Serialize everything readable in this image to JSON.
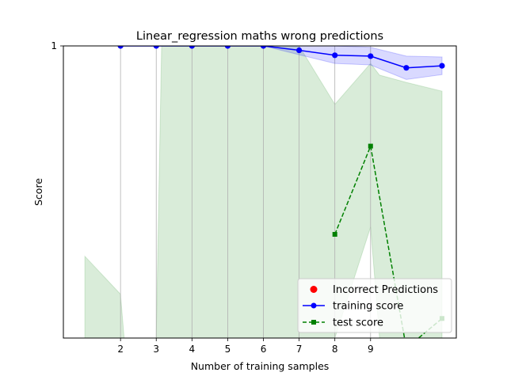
{
  "chart_data": {
    "type": "line",
    "title": "Linear_regression maths wrong predictions",
    "xlabel": "Number of training samples",
    "ylabel": "Score",
    "xlim": [
      0.4,
      11.4
    ],
    "ylim": [
      0.0,
      1.0
    ],
    "x_ticks": [
      2,
      3,
      4,
      5,
      6,
      7,
      8,
      9
    ],
    "y_ticks": [
      1
    ],
    "grid": "vertical lines at x ticks",
    "legend_position": "lower-right",
    "series": [
      {
        "name": "training score",
        "color": "#0000ff",
        "marker": "circle",
        "linestyle": "solid",
        "x": [
          2,
          3,
          4,
          5,
          6,
          7,
          8,
          9,
          10,
          11
        ],
        "values": [
          1.0,
          1.0,
          1.0,
          1.0,
          1.0,
          0.985,
          0.968,
          0.965,
          0.925,
          0.932
        ],
        "band_upper": [
          1.0,
          1.0,
          1.0,
          1.0,
          1.0,
          1.0,
          1.0,
          0.995,
          0.965,
          0.962
        ],
        "band_lower": [
          1.0,
          1.0,
          1.0,
          1.0,
          1.0,
          0.97,
          0.94,
          0.935,
          0.885,
          0.902
        ]
      },
      {
        "name": "test score",
        "color": "#008000",
        "marker": "square",
        "linestyle": "dashed",
        "x": [
          8,
          9,
          10,
          11
        ],
        "values": [
          0.355,
          0.657,
          -0.035,
          0.067
        ]
      }
    ],
    "test_band": {
      "color": "#008000",
      "x": [
        1,
        2,
        2.1,
        3,
        3.15,
        4,
        5,
        6,
        7,
        8,
        9,
        9.25,
        10,
        11
      ],
      "upper": [
        0.28,
        0.15,
        0.0,
        0.0,
        1.0,
        1.0,
        1.0,
        1.0,
        1.0,
        0.8,
        0.94,
        0.9,
        0.875,
        0.845
      ],
      "lower": [
        0.0,
        0.0,
        0.0,
        0.0,
        0.0,
        0.0,
        0.0,
        0.0,
        0.0,
        0.0,
        0.38,
        0.0,
        0.0,
        0.0
      ]
    },
    "incorrect_predictions": {
      "name": "Incorrect Predictions",
      "color": "#ff0000",
      "marker": "circle",
      "points": []
    }
  }
}
